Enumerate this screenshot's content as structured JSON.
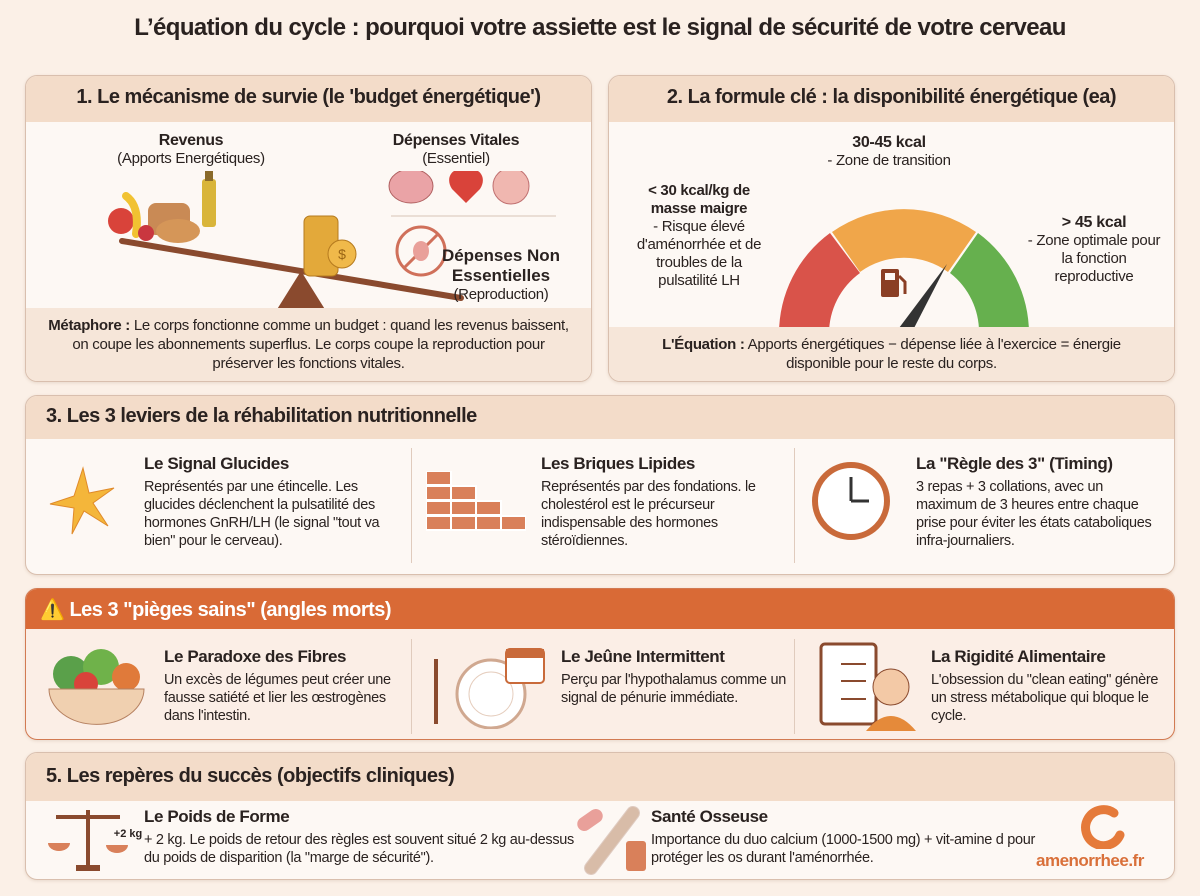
{
  "title": "L’équation du cycle : pourquoi votre assiette est le signal de sécurité de votre cerveau",
  "panel1": {
    "header": "1. Le mécanisme de survie (le 'budget énergétique')",
    "income_title": "Revenus",
    "income_sub": "(Apports Energétiques)",
    "vital_title": "Dépenses Vitales",
    "vital_sub": "(Essentiel)",
    "nonessential_title_1": "Dépenses Non",
    "nonessential_title_2": "Essentielles",
    "nonessential_sub": "(Reproduction)",
    "metaphor_label": "Métaphore :",
    "metaphor_text": "Le corps fonctionne comme un budget : quand les revenus baissent, on coupe les abonnements superflus. Le corps coupe la reproduction pour préserver les fonctions vitales."
  },
  "panel2": {
    "header": "2. La formule clé : la disponibilité énergétique (ea)",
    "low_title": "< 30 kcal/kg de masse maigre",
    "low_text": "- Risque élevé d'aménorrhée et de troubles de la pulsatilité LH",
    "mid_title": "30-45 kcal",
    "mid_text": "- Zone de transition",
    "high_title": "> 45 kcal",
    "high_text": "- Zone optimale pour la fonction reproductive",
    "gauge_colors": {
      "low": "#d9534a",
      "mid": "#f0a64a",
      "high": "#66b04e"
    },
    "equation_label": "L'Équation :",
    "equation_text": "Apports énergétiques − dépense liée à l'exercice = énergie disponible pour le reste du corps."
  },
  "panel3": {
    "header": "3. Les 3 leviers de la réhabilitation nutritionnelle",
    "items": [
      {
        "title": "Le Signal Glucides",
        "text": "Représentés par une étincelle. Les glucides déclenchent la pulsatilité des hormones GnRH/LH (le signal \"tout va bien\" pour le cerveau).",
        "icon": "spark-icon"
      },
      {
        "title": "Les Briques Lipides",
        "text": "Représentés par des fondations. le cholestérol est le précurseur indispensable des hormones stéroïdiennes.",
        "icon": "bricks-icon"
      },
      {
        "title": "La \"Règle des 3\" (Timing)",
        "text": "3 repas + 3 collations, avec un maximum de 3 heures entre chaque prise pour éviter les états cataboliques infra-journaliers.",
        "icon": "clock-icon"
      }
    ]
  },
  "panel4": {
    "header": "Les 3 \"pièges sains\" (angles morts)",
    "items": [
      {
        "title": "Le Paradoxe des Fibres",
        "text": "Un excès de légumes peut créer une fausse satiété et lier les œstrogènes dans l'intestin.",
        "icon": "vegetable-bowl-icon"
      },
      {
        "title": "Le Jeûne Intermittent",
        "text": "Perçu par l'hypothalamus comme un signal de pénurie immédiate.",
        "icon": "empty-plate-calendar-icon"
      },
      {
        "title": "La Rigidité Alimentaire",
        "text": "L'obsession du \"clean eating\" génère un stress métabolique qui bloque le cycle.",
        "icon": "stressed-checklist-icon"
      }
    ]
  },
  "panel5": {
    "header": "5. Les repères du succès (objectifs cliniques)",
    "items": [
      {
        "title": "Le Poids de Forme",
        "text": "+ 2 kg. Le poids de retour des règles est souvent situé 2 kg au-dessus du poids de disparition (la \"marge de sécurité\").",
        "icon": "scale-icon",
        "icon_label": "+2 kg"
      },
      {
        "title": "Santé Osseuse",
        "text": "Importance du duo calcium (1000-1500 mg) + vit-amine d pour protéger les os durant l'aménorrhée.",
        "icon": "bone-icon"
      }
    ],
    "logo": "amenorrhee.fr"
  }
}
